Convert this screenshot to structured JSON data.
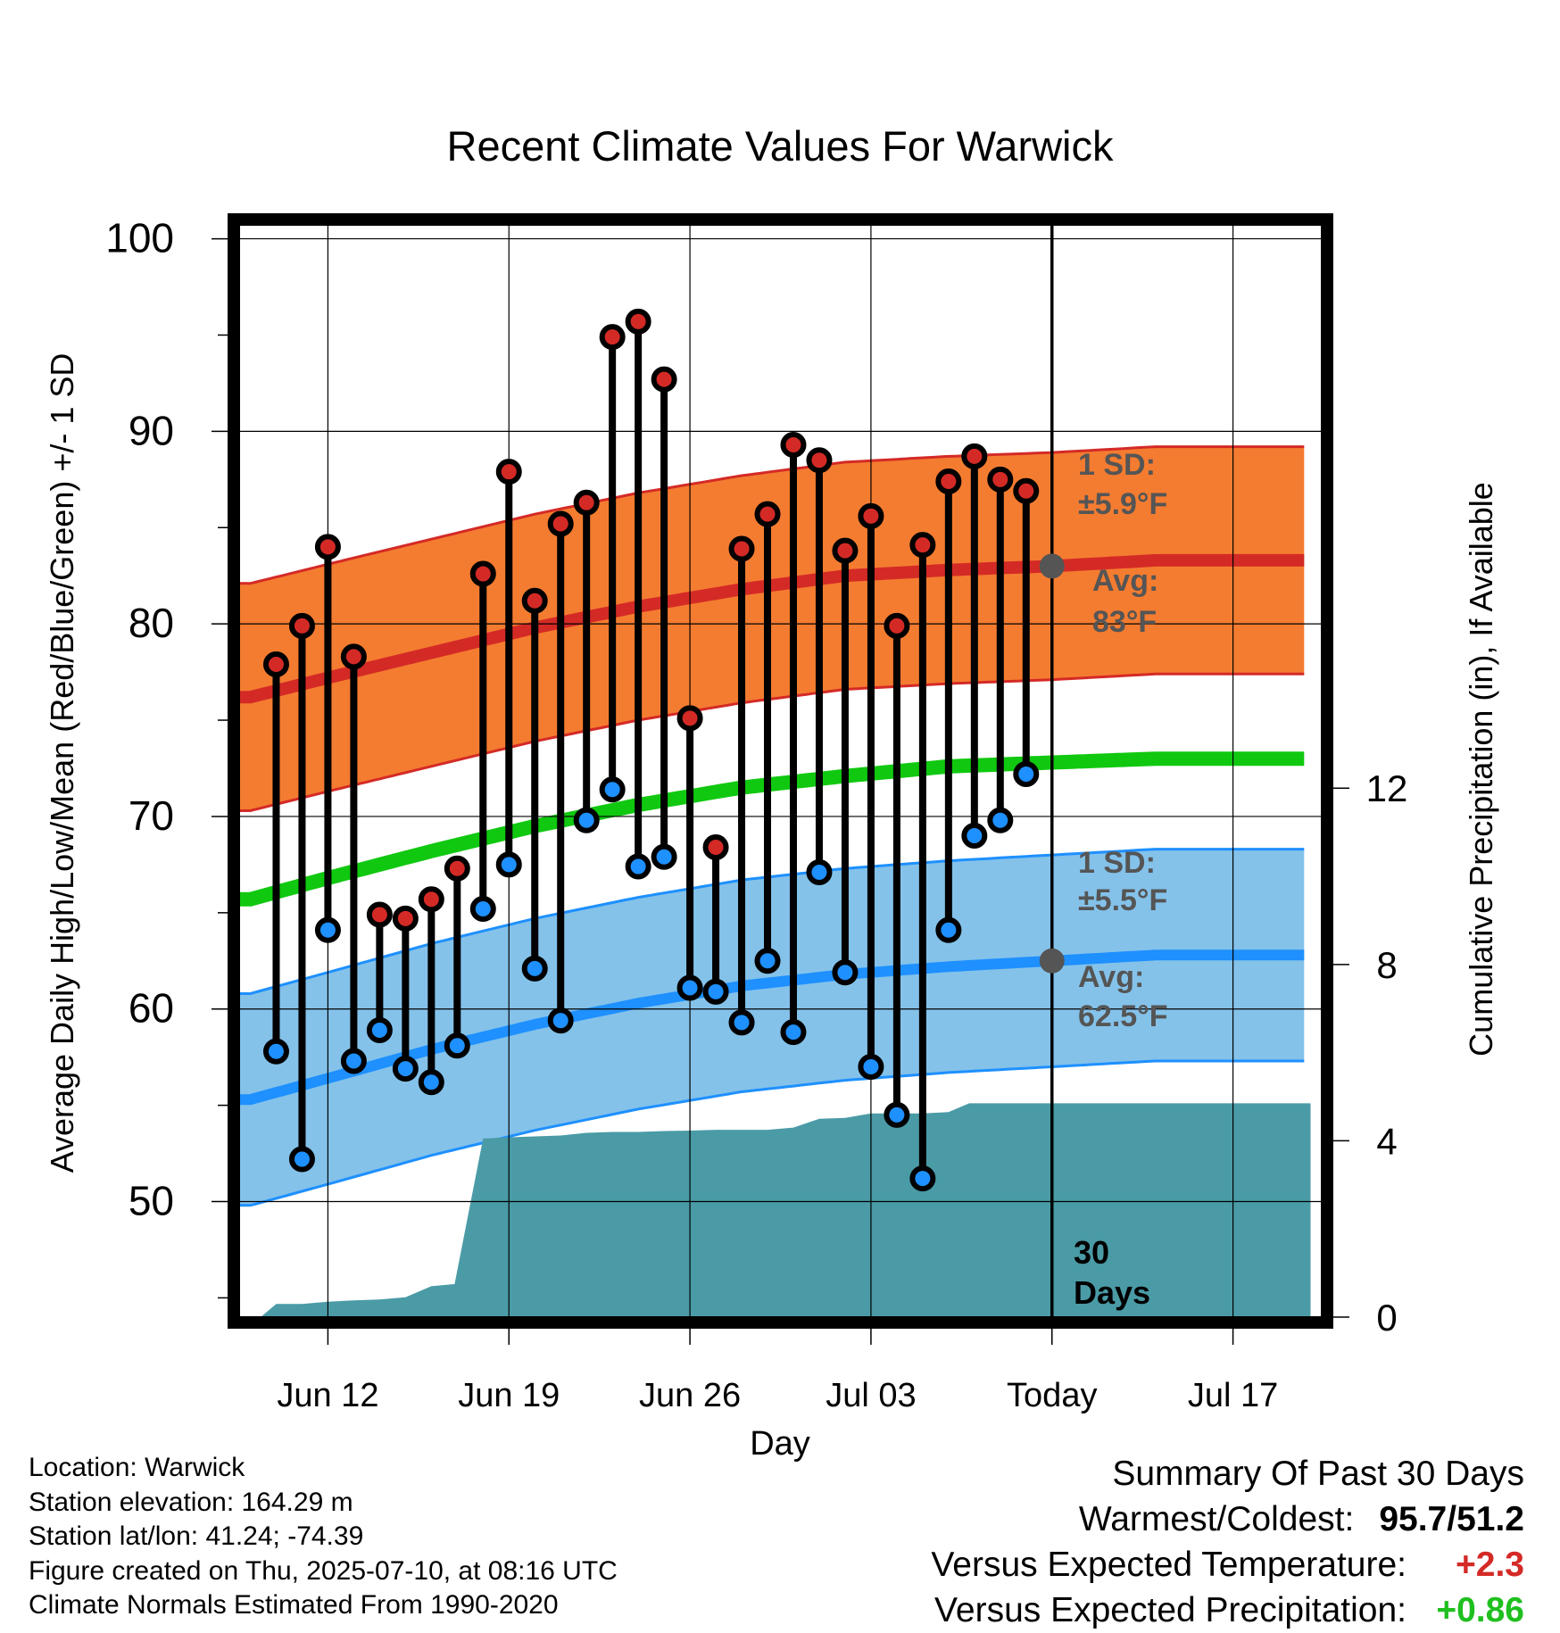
{
  "chart_data": {
    "type": "line",
    "title": "Recent Climate Values For Warwick",
    "xlabel": "Day",
    "ylabel": "Average Daily High/Low/Mean (Red/Blue/Green) +/- 1 SD",
    "ylabel_right": "Cumulative Precipitation (in), If Available",
    "xlim_days": [
      -31.5,
      10.5
    ],
    "ylim": [
      44,
      101
    ],
    "ylim_right": [
      0,
      24.9
    ],
    "x_ticks": [
      {
        "day": -28,
        "label": "Jun 12"
      },
      {
        "day": -21,
        "label": "Jun 19"
      },
      {
        "day": -14,
        "label": "Jun 26"
      },
      {
        "day": -7,
        "label": "Jul 03"
      },
      {
        "day": 0,
        "label": "Today"
      },
      {
        "day": 7,
        "label": "Jul 17"
      }
    ],
    "y_ticks": [
      50,
      60,
      70,
      80,
      90,
      100
    ],
    "y_right_ticks": [
      0,
      4,
      8,
      12
    ],
    "colors": {
      "high_band": "#f47c30",
      "high_line": "#d42a26",
      "mean_line": "#10c810",
      "low_band": "#84c2ea",
      "low_line": "#1e90ff",
      "precip": "#4a9ba6",
      "sd_text": "#555555",
      "high_dot": "#d42a26",
      "low_dot": "#1e90ff",
      "today_dot": "#555555"
    },
    "normals": {
      "day_keys": [
        -31,
        -28,
        -24,
        -20,
        -16,
        -12,
        -8,
        -4,
        0,
        4,
        10
      ],
      "avg_high": [
        76.2,
        77.2,
        78.5,
        79.8,
        80.9,
        81.8,
        82.5,
        82.8,
        83.0,
        83.3,
        83.3
      ],
      "avg_low": [
        55.3,
        56.4,
        57.9,
        59.2,
        60.3,
        61.2,
        61.8,
        62.2,
        62.5,
        62.8,
        62.8
      ],
      "avg_mean": [
        65.7,
        66.8,
        68.2,
        69.5,
        70.6,
        71.5,
        72.1,
        72.6,
        72.8,
        73.0,
        73.0
      ],
      "high_sd": 5.9,
      "low_sd": 5.5
    },
    "daily": {
      "days": [
        -30,
        -29,
        -28,
        -27,
        -26,
        -25,
        -24,
        -23,
        -22,
        -21,
        -20,
        -19,
        -18,
        -17,
        -16,
        -15,
        -14,
        -13,
        -12,
        -11,
        -10,
        -9,
        -8,
        -7,
        -6,
        -5,
        -4,
        -3,
        -2,
        -1
      ],
      "highs": [
        77.9,
        79.9,
        84.0,
        78.3,
        64.9,
        64.7,
        65.7,
        67.3,
        82.6,
        87.9,
        81.2,
        85.2,
        86.3,
        94.9,
        95.7,
        92.7,
        75.1,
        68.4,
        83.9,
        85.7,
        89.3,
        88.5,
        83.8,
        85.6,
        79.9,
        84.1,
        87.4,
        88.7,
        87.5,
        86.9
      ],
      "lows": [
        57.8,
        52.2,
        64.1,
        57.3,
        58.9,
        56.9,
        56.2,
        58.1,
        65.2,
        67.5,
        62.1,
        59.4,
        69.8,
        71.4,
        67.4,
        67.9,
        61.1,
        60.9,
        59.3,
        62.5,
        58.8,
        67.1,
        61.9,
        57.0,
        54.5,
        51.2,
        64.1,
        69.0,
        69.8,
        72.2
      ]
    },
    "precip_cumulative": {
      "days": [
        -30.6,
        -30,
        -29,
        -28,
        -27,
        -26,
        -25,
        -24,
        -23.1,
        -22,
        -21,
        -20,
        -19,
        -18,
        -17,
        -16,
        -15,
        -14,
        -13,
        -12,
        -11,
        -10,
        -9,
        -8,
        -7,
        -6,
        -5,
        -4,
        -3.2,
        -2,
        -1,
        0,
        10
      ],
      "values": [
        0.0,
        0.3,
        0.3,
        0.35,
        0.38,
        0.4,
        0.45,
        0.7,
        0.75,
        4.05,
        4.08,
        4.1,
        4.12,
        4.18,
        4.2,
        4.2,
        4.22,
        4.23,
        4.25,
        4.25,
        4.25,
        4.3,
        4.5,
        4.52,
        4.62,
        4.62,
        4.62,
        4.65,
        4.85,
        4.85,
        4.85,
        4.85,
        4.85
      ]
    },
    "annotations": {
      "high_sd_label": "1 SD:",
      "high_sd_value": "±5.9°F",
      "high_avg_label": "Avg:",
      "high_avg_value": "83°F",
      "low_sd_label": "1 SD:",
      "low_sd_value": "±5.5°F",
      "low_avg_label": "Avg:",
      "low_avg_value": "62.5°F",
      "days_number": "30",
      "days_word": "Days"
    },
    "grid": true
  },
  "footer": {
    "location": "Location: Warwick",
    "elevation": "Station elevation: 164.29 m",
    "latlon": "Station lat/lon: 41.24; -74.39",
    "created": "Figure created on Thu, 2025-07-10, at 08:16 UTC",
    "normals": "Climate Normals Estimated From 1990-2020"
  },
  "summary": {
    "title": "Summary Of Past 30 Days",
    "warm_cold_label": "Warmest/Coldest:",
    "warm_cold_value": "95.7/51.2",
    "temp_label": "Versus Expected Temperature:",
    "temp_value": "+2.3",
    "precip_label": "Versus Expected Precipitation:",
    "precip_value": "+0.86"
  }
}
